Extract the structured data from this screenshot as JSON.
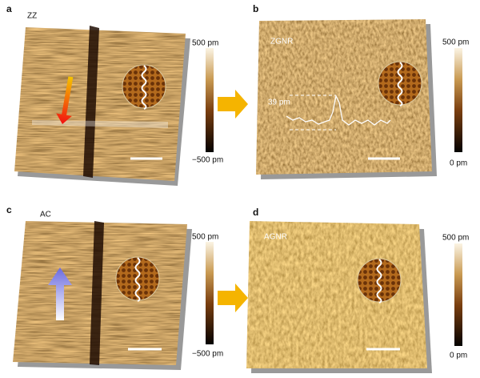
{
  "panels": [
    {
      "label": "a",
      "sample": "ZZ",
      "colorbar_max": "500 pm",
      "colorbar_min": "−500 pm"
    },
    {
      "label": "b",
      "sample": "ZGNR",
      "annotation": "39 pm",
      "colorbar_max": "500 pm",
      "colorbar_min": "0 pm"
    },
    {
      "label": "c",
      "sample": "AC",
      "colorbar_max": "500 pm",
      "colorbar_min": "−500 pm"
    },
    {
      "label": "d",
      "sample": "AGNR",
      "colorbar_max": "500 pm",
      "colorbar_min": "0 pm"
    }
  ]
}
